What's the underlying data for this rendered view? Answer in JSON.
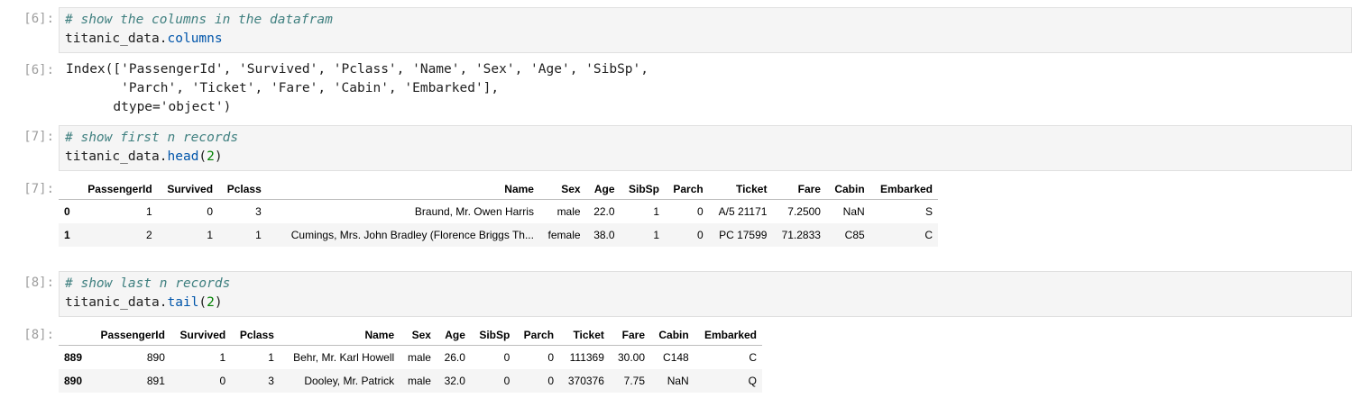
{
  "cells": [
    {
      "prompt_in": "[6]:",
      "comment": "# show the columns in the datafram",
      "code_obj": "titanic_data.",
      "code_attr": "columns",
      "prompt_out": "[6]:",
      "output": "Index(['PassengerId', 'Survived', 'Pclass', 'Name', 'Sex', 'Age', 'SibSp',\n       'Parch', 'Ticket', 'Fare', 'Cabin', 'Embarked'],\n      dtype='object')"
    },
    {
      "prompt_in": "[7]:",
      "comment": "# show first n records",
      "code_obj": "titanic_data.",
      "code_attr": "head",
      "code_arg": "2",
      "prompt_out": "[7]:",
      "table": {
        "columns": [
          "",
          "PassengerId",
          "Survived",
          "Pclass",
          "Name",
          "Sex",
          "Age",
          "SibSp",
          "Parch",
          "Ticket",
          "Fare",
          "Cabin",
          "Embarked"
        ],
        "rows": [
          [
            "0",
            "1",
            "0",
            "3",
            "Braund, Mr. Owen Harris",
            "male",
            "22.0",
            "1",
            "0",
            "A/5 21171",
            "7.2500",
            "NaN",
            "S"
          ],
          [
            "1",
            "2",
            "1",
            "1",
            "Cumings, Mrs. John Bradley (Florence Briggs Th...",
            "female",
            "38.0",
            "1",
            "0",
            "PC 17599",
            "71.2833",
            "C85",
            "C"
          ]
        ]
      }
    },
    {
      "prompt_in": "[8]:",
      "comment": "# show last n records",
      "code_obj": "titanic_data.",
      "code_attr": "tail",
      "code_arg": "2",
      "prompt_out": "[8]:",
      "table": {
        "columns": [
          "",
          "PassengerId",
          "Survived",
          "Pclass",
          "Name",
          "Sex",
          "Age",
          "SibSp",
          "Parch",
          "Ticket",
          "Fare",
          "Cabin",
          "Embarked"
        ],
        "rows": [
          [
            "889",
            "890",
            "1",
            "1",
            "Behr, Mr. Karl Howell",
            "male",
            "26.0",
            "0",
            "0",
            "111369",
            "30.00",
            "C148",
            "C"
          ],
          [
            "890",
            "891",
            "0",
            "3",
            "Dooley, Mr. Patrick",
            "male",
            "32.0",
            "0",
            "0",
            "370376",
            "7.75",
            "NaN",
            "Q"
          ]
        ]
      }
    }
  ]
}
